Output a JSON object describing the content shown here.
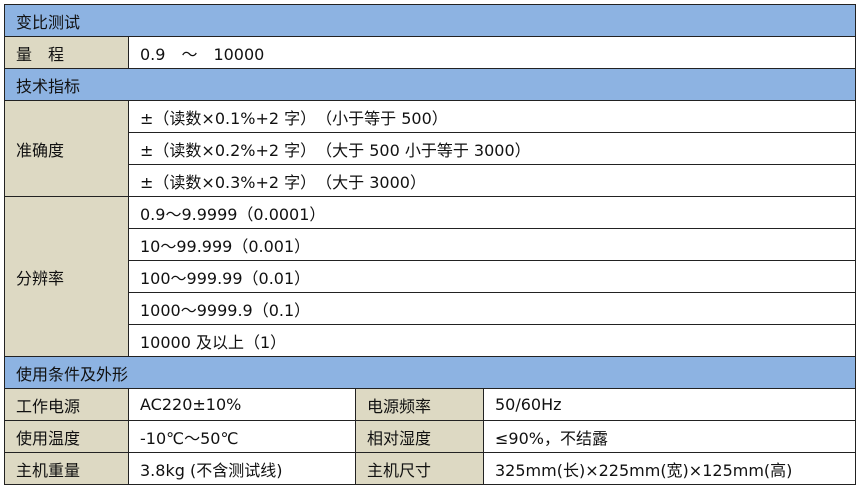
{
  "colors": {
    "section_header": "#8db3e2",
    "label_cell": "#ddd9c3"
  },
  "sections": {
    "ratio_test": "变比测试",
    "range": {
      "label": "量　程",
      "value": "0.9　～　10000"
    },
    "specs": "技术指标",
    "accuracy": {
      "label": "准确度",
      "rows": [
        "±（读数×0.1%+2 字）　（小于等于 500）",
        "±（读数×0.2%+2 字）　（大于 500 小于等于 3000）",
        "±（读数×0.3%+2 字）　（大于 3000）"
      ]
    },
    "resolution": {
      "label": "分辨率",
      "rows": [
        "0.9～9.9999（0.0001）",
        "10～99.999（0.001）",
        "100～999.99（0.01）",
        "1000～9999.9（0.1）",
        "10000 及以上（1）"
      ]
    },
    "conditions": "使用条件及外形",
    "conditions_rows": [
      {
        "l1": "工作电源",
        "v1": "AC220±10%",
        "l2": "电源频率",
        "v2": "50/60Hz"
      },
      {
        "l1": "使用温度",
        "v1": "-10℃～50℃",
        "l2": "相对湿度",
        "v2": "≤90%，不结露"
      },
      {
        "l1": "主机重量",
        "v1": "3.8kg (不含测试线)",
        "l2": "主机尺寸",
        "v2": "325mm(长)×225mm(宽)×125mm(高)"
      }
    ]
  }
}
